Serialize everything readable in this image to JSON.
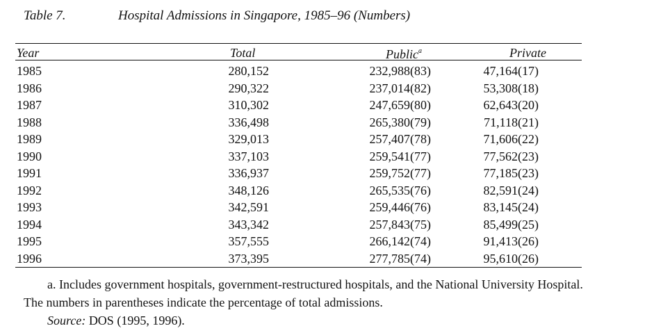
{
  "caption": {
    "label": "Table 7.",
    "title": "Hospital Admissions in Singapore, 1985–96 (Numbers)"
  },
  "table": {
    "headers": {
      "year": "Year",
      "total": "Total",
      "public": "Public",
      "public_mark": "a",
      "private": "Private"
    },
    "rows": [
      {
        "year": "1985",
        "total": "280,152",
        "public": "232,988(83)",
        "private": "47,164(17)"
      },
      {
        "year": "1986",
        "total": "290,322",
        "public": "237,014(82)",
        "private": "53,308(18)"
      },
      {
        "year": "1987",
        "total": "310,302",
        "public": "247,659(80)",
        "private": "62,643(20)"
      },
      {
        "year": "1988",
        "total": "336,498",
        "public": "265,380(79)",
        "private": "71,118(21)"
      },
      {
        "year": "1989",
        "total": "329,013",
        "public": "257,407(78)",
        "private": "71,606(22)"
      },
      {
        "year": "1990",
        "total": "337,103",
        "public": "259,541(77)",
        "private": "77,562(23)"
      },
      {
        "year": "1991",
        "total": "336,937",
        "public": "259,752(77)",
        "private": "77,185(23)"
      },
      {
        "year": "1992",
        "total": "348,126",
        "public": "265,535(76)",
        "private": "82,591(24)"
      },
      {
        "year": "1993",
        "total": "342,591",
        "public": "259,446(76)",
        "private": "83,145(24)"
      },
      {
        "year": "1994",
        "total": "343,342",
        "public": "257,843(75)",
        "private": "85,499(25)"
      },
      {
        "year": "1995",
        "total": "357,555",
        "public": "266,142(74)",
        "private": "91,413(26)"
      },
      {
        "year": "1996",
        "total": "373,395",
        "public": "277,785(74)",
        "private": "95,610(26)"
      }
    ]
  },
  "notes": {
    "a_line1": "a. Includes government hospitals, government-restructured hospitals, and the National University Hospital.",
    "a_line2": "The numbers in parentheses indicate the percentage of total admissions.",
    "source_label": "Source:",
    "source_text": " DOS (1995, 1996)."
  }
}
